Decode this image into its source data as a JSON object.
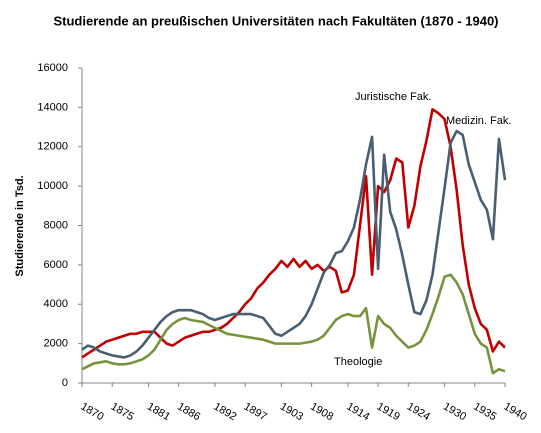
{
  "chart_data": {
    "type": "line",
    "title": "Studierende an preußischen Universitäten nach Fakultäten (1870 - 1940)",
    "y_label": "Studierende in Tsd.",
    "x": [
      1870,
      1871,
      1872,
      1873,
      1874,
      1875,
      1876,
      1877,
      1878,
      1879,
      1880,
      1881,
      1882,
      1883,
      1884,
      1885,
      1886,
      1887,
      1888,
      1889,
      1890,
      1891,
      1892,
      1893,
      1894,
      1895,
      1896,
      1897,
      1898,
      1899,
      1900,
      1901,
      1902,
      1903,
      1904,
      1905,
      1906,
      1907,
      1908,
      1909,
      1910,
      1911,
      1912,
      1913,
      1914,
      1915,
      1916,
      1917,
      1918,
      1919,
      1920,
      1921,
      1922,
      1923,
      1924,
      1925,
      1926,
      1927,
      1928,
      1929,
      1930,
      1931,
      1932,
      1933,
      1934,
      1935,
      1936,
      1937,
      1938,
      1939,
      1940
    ],
    "series": [
      {
        "name": "Juristische Fak.",
        "color": "#c00000",
        "values": [
          1300,
          1500,
          1700,
          1900,
          2100,
          2200,
          2300,
          2400,
          2500,
          2500,
          2600,
          2600,
          2600,
          2300,
          2000,
          1900,
          2100,
          2300,
          2400,
          2500,
          2600,
          2600,
          2700,
          2800,
          3000,
          3300,
          3600,
          4000,
          4300,
          4800,
          5100,
          5500,
          5800,
          6200,
          5900,
          6300,
          5900,
          6200,
          5800,
          6000,
          5700,
          5900,
          5700,
          4600,
          4700,
          5500,
          8000,
          10500,
          5500,
          10000,
          9700,
          10300,
          11400,
          11200,
          7900,
          9000,
          11000,
          12300,
          13900,
          13700,
          13400,
          12000,
          9800,
          7000,
          5000,
          3800,
          3000,
          2700,
          1600,
          2100,
          1800
        ]
      },
      {
        "name": "Medizin. Fak.",
        "color": "#4a5e72",
        "values": [
          1700,
          1900,
          1800,
          1600,
          1500,
          1400,
          1350,
          1300,
          1400,
          1600,
          1900,
          2300,
          2700,
          3100,
          3400,
          3600,
          3700,
          3700,
          3700,
          3600,
          3500,
          3300,
          3200,
          3300,
          3400,
          3500,
          3500,
          3500,
          3500,
          3400,
          3300,
          2900,
          2500,
          2400,
          2600,
          2800,
          3000,
          3400,
          4000,
          4800,
          5600,
          6000,
          6600,
          6700,
          7200,
          7900,
          9300,
          11100,
          12500,
          5800,
          11600,
          8700,
          7800,
          6500,
          5000,
          3600,
          3500,
          4200,
          5500,
          7700,
          9900,
          12200,
          12800,
          12600,
          11100,
          10200,
          9300,
          8800,
          7300,
          12400,
          10300
        ]
      },
      {
        "name": "Theologie",
        "color": "#77933c",
        "values": [
          700,
          850,
          1000,
          1050,
          1100,
          1000,
          950,
          950,
          1000,
          1100,
          1200,
          1400,
          1700,
          2200,
          2700,
          3000,
          3200,
          3300,
          3200,
          3150,
          3100,
          2950,
          2800,
          2650,
          2500,
          2450,
          2400,
          2350,
          2300,
          2250,
          2200,
          2100,
          2000,
          2000,
          2000,
          2000,
          2000,
          2050,
          2100,
          2200,
          2400,
          2800,
          3200,
          3400,
          3500,
          3400,
          3400,
          3800,
          1800,
          3400,
          3000,
          2800,
          2400,
          2100,
          1800,
          1900,
          2100,
          2700,
          3500,
          4400,
          5400,
          5500,
          5100,
          4500,
          3500,
          2500,
          2000,
          1800,
          500,
          700,
          600
        ]
      }
    ],
    "xlim": [
      1870,
      1940
    ],
    "xticks": [
      1870,
      1875,
      1881,
      1886,
      1892,
      1897,
      1903,
      1908,
      1914,
      1919,
      1924,
      1930,
      1935,
      1940
    ],
    "ylim": [
      0,
      16000
    ],
    "yticks": [
      0,
      2000,
      4000,
      6000,
      8000,
      10000,
      12000,
      14000,
      16000
    ],
    "grid": false
  }
}
